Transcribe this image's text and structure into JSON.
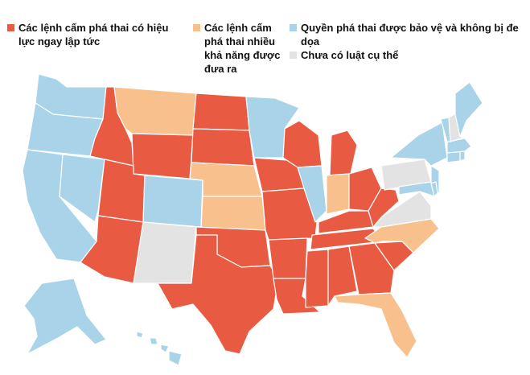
{
  "colors": {
    "immediate_ban": "#e85a42",
    "likely_ban": "#f7c08c",
    "protected": "#a8d3e8",
    "no_law": "#e3e3e3",
    "border": "#ffffff"
  },
  "legend": [
    {
      "label": "Các lệnh cấm phá thai có hiệu\nlực ngay lập tức",
      "color_key": "immediate_ban"
    },
    {
      "label": "Các lệnh cấm\nphá thai nhiều\nkhả năng được\nđưa ra",
      "color_key": "likely_ban"
    },
    {
      "label": "Quyền phá thai được bảo vệ và không bị đe dọa",
      "color_key": "protected"
    },
    {
      "label": "Chưa có luật cụ thể",
      "color_key": "no_law"
    }
  ]
}
